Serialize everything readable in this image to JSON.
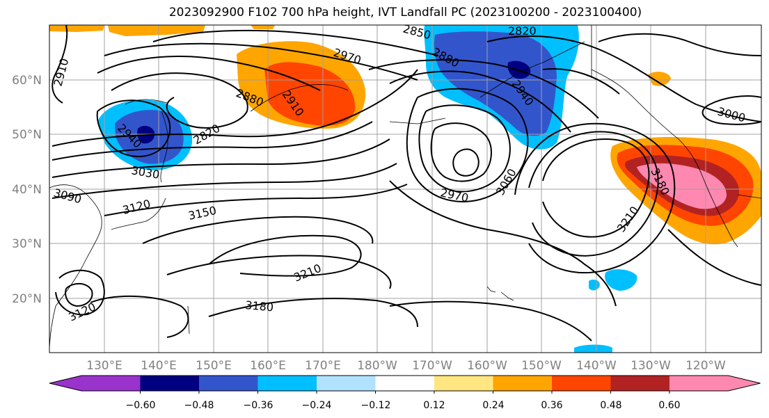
{
  "title": "2023092900 F102 700 hPa height, IVT Landfall PC (2023100200 - 2023100400)",
  "map": {
    "latitude_labels": [
      "60°N",
      "50°N",
      "40°N",
      "30°N",
      "20°N"
    ],
    "longitude_labels": [
      "130°E",
      "140°E",
      "150°E",
      "160°E",
      "170°E",
      "180°W",
      "170°W",
      "160°W",
      "150°W",
      "140°W",
      "130°W",
      "120°W"
    ],
    "contour_labels": [
      "2910",
      "2970",
      "2880",
      "2820",
      "2910",
      "2880",
      "2940",
      "2820",
      "2940",
      "3030",
      "3090",
      "3120",
      "3150",
      "3000",
      "3180",
      "2970",
      "3060",
      "3210",
      "3210",
      "3120",
      "3180",
      "2850"
    ]
  },
  "colorbar": {
    "ticks": [
      "−0.60",
      "−0.48",
      "−0.36",
      "−0.24",
      "−0.12",
      "0.12",
      "0.24",
      "0.36",
      "0.48",
      "0.60"
    ],
    "colors": [
      "#9933cc",
      "#000080",
      "#3355cc",
      "#00bfff",
      "#b0e2ff",
      "#ffffff",
      "#ffe680",
      "#ffa500",
      "#ff4500",
      "#b22222",
      "#ff88b0",
      "#ff88b0"
    ]
  }
}
